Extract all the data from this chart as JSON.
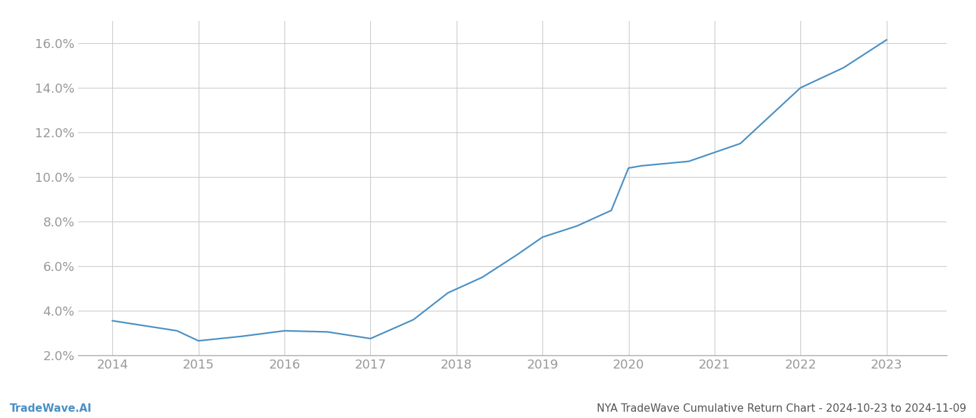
{
  "x_years": [
    2014,
    2014.75,
    2015,
    2015.5,
    2016,
    2016.5,
    2017,
    2017.5,
    2017.9,
    2018.3,
    2018.7,
    2019,
    2019.4,
    2019.8,
    2020,
    2020.15,
    2020.7,
    2021,
    2021.3,
    2022,
    2022.5,
    2023.0
  ],
  "y_values": [
    3.55,
    3.1,
    2.65,
    2.85,
    3.1,
    3.05,
    2.75,
    3.6,
    4.8,
    5.5,
    6.5,
    7.3,
    7.8,
    8.5,
    10.4,
    10.5,
    10.7,
    11.1,
    11.5,
    14.0,
    14.9,
    16.15
  ],
  "line_color": "#4a90c4",
  "line_width": 1.6,
  "bg_color": "#ffffff",
  "grid_color": "#cccccc",
  "tick_color": "#999999",
  "x_tick_labels": [
    "2014",
    "2015",
    "2016",
    "2017",
    "2018",
    "2019",
    "2020",
    "2021",
    "2022",
    "2023"
  ],
  "x_tick_positions": [
    2014,
    2015,
    2016,
    2017,
    2018,
    2019,
    2020,
    2021,
    2022,
    2023
  ],
  "y_min": 2.0,
  "y_max": 17.0,
  "y_ticks": [
    2.0,
    4.0,
    6.0,
    8.0,
    10.0,
    12.0,
    14.0,
    16.0
  ],
  "x_min": 2013.6,
  "x_max": 2023.7,
  "footer_left": "TradeWave.AI",
  "footer_right": "NYA TradeWave Cumulative Return Chart - 2024-10-23 to 2024-11-09",
  "footer_color": "#555555",
  "footer_left_color": "#4a90c4"
}
